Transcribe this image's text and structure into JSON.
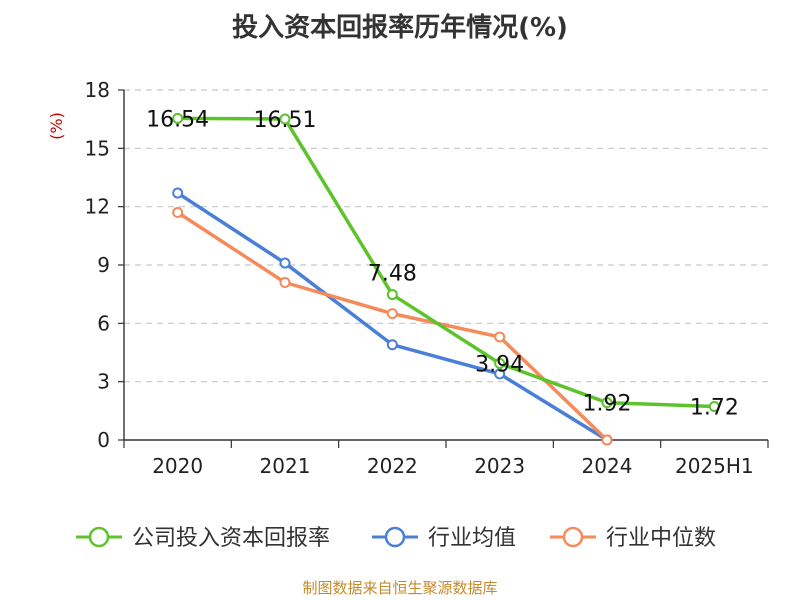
{
  "chart_data": {
    "type": "line",
    "title": "投入资本回报率历年情况(%)",
    "ylabel": "(%)",
    "xlabel": "",
    "categories": [
      "2020",
      "2021",
      "2022",
      "2023",
      "2024",
      "2025H1"
    ],
    "ylim": [
      0,
      18
    ],
    "yticks": [
      0,
      3,
      6,
      9,
      12,
      15,
      18
    ],
    "grid": true,
    "legend_position": "bottom",
    "series": [
      {
        "name": "公司投入资本回报率",
        "color": "#5cc42a",
        "values": [
          16.54,
          16.51,
          7.48,
          3.94,
          1.92,
          1.72
        ],
        "labels": [
          "16.54",
          "16.51",
          "7.48",
          "3.94",
          "1.92",
          "1.72"
        ]
      },
      {
        "name": "行业均值",
        "color": "#4a7fd6",
        "values": [
          12.7,
          9.1,
          4.9,
          3.4,
          0.0,
          null
        ]
      },
      {
        "name": "行业中位数",
        "color": "#f58a5a",
        "values": [
          11.7,
          8.1,
          6.5,
          5.3,
          0.0,
          null
        ]
      }
    ]
  },
  "source": "制图数据来自恒生聚源数据库"
}
